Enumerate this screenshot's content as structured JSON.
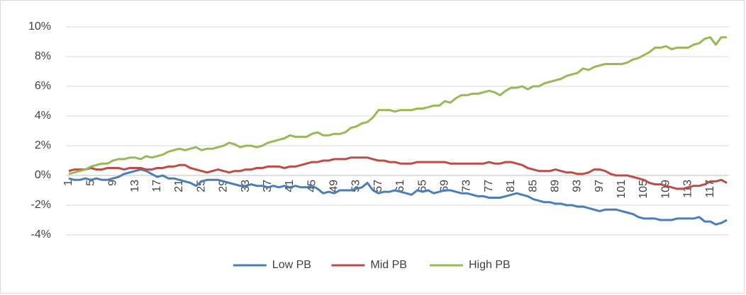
{
  "chart_data": {
    "type": "line",
    "categories": [
      1,
      null,
      null,
      null,
      5,
      null,
      null,
      null,
      9,
      null,
      null,
      null,
      13,
      null,
      null,
      null,
      17,
      null,
      null,
      null,
      21,
      null,
      null,
      null,
      25,
      null,
      null,
      null,
      29,
      null,
      null,
      null,
      33,
      null,
      null,
      null,
      37,
      null,
      null,
      null,
      41,
      null,
      null,
      null,
      45,
      null,
      null,
      null,
      49,
      null,
      null,
      null,
      53,
      null,
      null,
      null,
      57,
      null,
      null,
      null,
      61,
      null,
      null,
      null,
      65,
      null,
      null,
      null,
      69,
      null,
      null,
      null,
      73,
      null,
      null,
      null,
      77,
      null,
      null,
      null,
      81,
      null,
      null,
      null,
      85,
      null,
      null,
      null,
      89,
      null,
      null,
      null,
      93,
      null,
      null,
      null,
      97,
      null,
      null,
      null,
      101,
      null,
      null,
      null,
      105,
      null,
      null,
      null,
      109,
      null,
      null,
      null,
      113,
      null,
      null,
      null,
      117,
      null,
      null,
      null
    ],
    "series": [
      {
        "name": "Low PB",
        "color": "#4a7ebb",
        "values": [
          -0.2,
          -0.3,
          -0.3,
          -0.2,
          -0.3,
          -0.2,
          -0.3,
          -0.3,
          -0.2,
          -0.1,
          0.1,
          0.2,
          0.3,
          0.4,
          0.3,
          0.1,
          -0.1,
          0.0,
          -0.2,
          -0.2,
          -0.3,
          -0.4,
          -0.5,
          -0.7,
          -0.4,
          -0.3,
          -0.3,
          -0.3,
          -0.4,
          -0.5,
          -0.6,
          -0.7,
          -0.7,
          -0.6,
          -0.7,
          -0.7,
          -0.8,
          -0.7,
          -0.8,
          -0.7,
          -0.8,
          -0.7,
          -0.8,
          -0.8,
          -0.7,
          -0.9,
          -1.2,
          -1.1,
          -1.2,
          -1.0,
          -1.0,
          -1.0,
          -0.9,
          -0.8,
          -0.5,
          -1.0,
          -1.2,
          -1.1,
          -1.1,
          -1.0,
          -1.1,
          -1.2,
          -1.3,
          -1.0,
          -1.1,
          -1.0,
          -1.2,
          -1.1,
          -1.0,
          -1.0,
          -1.1,
          -1.2,
          -1.2,
          -1.3,
          -1.4,
          -1.4,
          -1.5,
          -1.5,
          -1.5,
          -1.4,
          -1.3,
          -1.2,
          -1.3,
          -1.4,
          -1.6,
          -1.7,
          -1.8,
          -1.8,
          -1.9,
          -1.9,
          -2.0,
          -2.0,
          -2.1,
          -2.1,
          -2.2,
          -2.3,
          -2.4,
          -2.3,
          -2.3,
          -2.3,
          -2.4,
          -2.5,
          -2.6,
          -2.8,
          -2.9,
          -2.9,
          -2.9,
          -3.0,
          -3.0,
          -3.0,
          -2.9,
          -2.9,
          -2.9,
          -2.9,
          -2.8,
          -3.1,
          -3.1,
          -3.3,
          -3.2,
          -3.0
        ]
      },
      {
        "name": "Mid PB",
        "color": "#be4b48",
        "values": [
          0.3,
          0.4,
          0.4,
          0.4,
          0.5,
          0.4,
          0.4,
          0.5,
          0.5,
          0.5,
          0.4,
          0.5,
          0.5,
          0.5,
          0.4,
          0.4,
          0.5,
          0.5,
          0.6,
          0.6,
          0.7,
          0.7,
          0.5,
          0.4,
          0.3,
          0.2,
          0.3,
          0.4,
          0.3,
          0.2,
          0.3,
          0.3,
          0.4,
          0.4,
          0.5,
          0.5,
          0.6,
          0.6,
          0.6,
          0.5,
          0.6,
          0.6,
          0.7,
          0.8,
          0.9,
          0.9,
          1.0,
          1.0,
          1.1,
          1.1,
          1.1,
          1.2,
          1.2,
          1.2,
          1.2,
          1.1,
          1.0,
          1.0,
          0.9,
          0.9,
          0.8,
          0.8,
          0.8,
          0.9,
          0.9,
          0.9,
          0.9,
          0.9,
          0.9,
          0.8,
          0.8,
          0.8,
          0.8,
          0.8,
          0.8,
          0.8,
          0.9,
          0.8,
          0.8,
          0.9,
          0.9,
          0.8,
          0.7,
          0.5,
          0.4,
          0.3,
          0.3,
          0.3,
          0.4,
          0.3,
          0.2,
          0.2,
          0.1,
          0.1,
          0.2,
          0.4,
          0.4,
          0.3,
          0.1,
          0.0,
          0.0,
          0.0,
          -0.1,
          -0.2,
          -0.3,
          -0.5,
          -0.6,
          -0.6,
          -0.7,
          -0.8,
          -0.9,
          -0.9,
          -0.8,
          -0.7,
          -0.7,
          -0.6,
          -0.4,
          -0.4,
          -0.3,
          -0.5
        ]
      },
      {
        "name": "High PB",
        "color": "#98b954",
        "values": [
          0.1,
          0.2,
          0.3,
          0.4,
          0.6,
          0.7,
          0.8,
          0.8,
          1.0,
          1.1,
          1.1,
          1.2,
          1.2,
          1.1,
          1.3,
          1.2,
          1.3,
          1.4,
          1.6,
          1.7,
          1.8,
          1.7,
          1.8,
          1.9,
          1.7,
          1.8,
          1.8,
          1.9,
          2.0,
          2.2,
          2.1,
          1.9,
          2.0,
          2.0,
          1.9,
          2.0,
          2.2,
          2.3,
          2.4,
          2.5,
          2.7,
          2.6,
          2.6,
          2.6,
          2.8,
          2.9,
          2.7,
          2.7,
          2.8,
          2.8,
          2.9,
          3.2,
          3.3,
          3.5,
          3.6,
          3.9,
          4.4,
          4.4,
          4.4,
          4.3,
          4.4,
          4.4,
          4.4,
          4.5,
          4.5,
          4.6,
          4.7,
          4.7,
          5.0,
          4.9,
          5.2,
          5.4,
          5.4,
          5.5,
          5.5,
          5.6,
          5.7,
          5.6,
          5.4,
          5.7,
          5.9,
          5.9,
          6.0,
          5.8,
          6.0,
          6.0,
          6.2,
          6.3,
          6.4,
          6.5,
          6.7,
          6.8,
          6.9,
          7.2,
          7.1,
          7.3,
          7.4,
          7.5,
          7.5,
          7.5,
          7.5,
          7.6,
          7.8,
          7.9,
          8.1,
          8.3,
          8.6,
          8.6,
          8.7,
          8.5,
          8.6,
          8.6,
          8.6,
          8.8,
          8.9,
          9.2,
          9.3,
          8.8,
          9.3,
          9.3
        ]
      }
    ],
    "ylim": [
      -4,
      10
    ],
    "yticks": [
      {
        "value": -4,
        "label": "-4%"
      },
      {
        "value": -2,
        "label": "-2%"
      },
      {
        "value": 0,
        "label": "0%"
      },
      {
        "value": 2,
        "label": "2%"
      },
      {
        "value": 4,
        "label": "4%"
      },
      {
        "value": 6,
        "label": "6%"
      },
      {
        "value": 8,
        "label": "8%"
      },
      {
        "value": 10,
        "label": "10%"
      }
    ],
    "grid": true,
    "legend": "bottom"
  }
}
